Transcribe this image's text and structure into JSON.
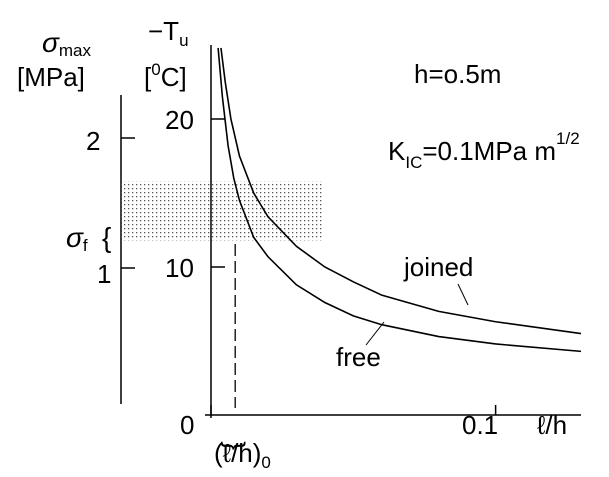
{
  "chart_data": {
    "type": "line",
    "annotations": {
      "h": "h=o.5m",
      "kic_main": "K",
      "kic_sub": "IC",
      "kic_rest": "=0.1MPa m",
      "kic_sup": "1/2"
    },
    "left_axis": {
      "symbol": "σ",
      "symbol_sub": "max",
      "unit": "[MPa]",
      "ticks": [
        {
          "label": "2",
          "value": 2
        },
        {
          "label": "1",
          "value": 1
        }
      ]
    },
    "right_axis": {
      "symbol": "−T",
      "symbol_sub": "u",
      "unit_open": "[",
      "unit_sup": "0",
      "unit_close": "C]",
      "ylim": [
        0,
        25
      ],
      "ticks": [
        {
          "label": "20",
          "value": 20
        },
        {
          "label": "10",
          "value": 10
        }
      ]
    },
    "x_axis": {
      "xlim": [
        0,
        0.13
      ],
      "ticks": [
        {
          "label": "0",
          "value": 0
        },
        {
          "label": "0.1",
          "value": 0.1
        }
      ],
      "label": "ℓ/h",
      "critical_label": "(ℓ/h)",
      "critical_sub": "0",
      "critical_value": 0.0085
    },
    "sigma_f": {
      "symbol": "σ",
      "sub": "f",
      "brace": "{",
      "band_T": [
        11.8,
        15.8
      ]
    },
    "series": [
      {
        "name": "joined",
        "x": [
          0.0035,
          0.005,
          0.007,
          0.01,
          0.015,
          0.02,
          0.03,
          0.04,
          0.05,
          0.06,
          0.08,
          0.1,
          0.13
        ],
        "y": [
          24.8,
          22.5,
          20.0,
          17.5,
          15.0,
          13.4,
          11.4,
          10.0,
          9.0,
          8.1,
          7.0,
          6.3,
          5.5
        ]
      },
      {
        "name": "free",
        "x": [
          0.0025,
          0.004,
          0.006,
          0.008,
          0.01,
          0.015,
          0.02,
          0.03,
          0.04,
          0.05,
          0.06,
          0.08,
          0.1,
          0.13
        ],
        "y": [
          24.8,
          21.5,
          18.2,
          16.0,
          14.5,
          12.0,
          10.7,
          8.8,
          7.6,
          6.7,
          6.1,
          5.3,
          4.8,
          4.3
        ]
      }
    ]
  }
}
